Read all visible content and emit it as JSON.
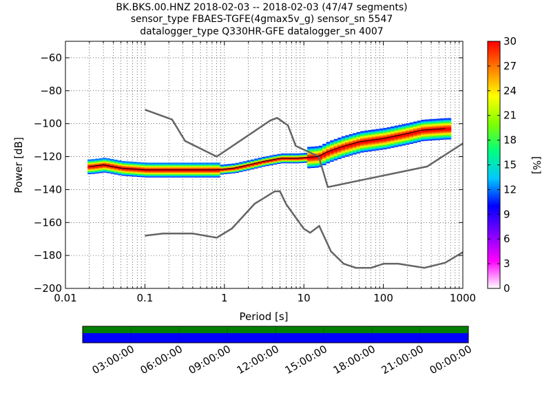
{
  "header": {
    "line1": "BK.BKS.00.HNZ   2018-02-03 -- 2018-02-03  (47/47 segments)",
    "line2": "sensor_type FBAES-TGFE(4gmax5v_g) sensor_sn 5547",
    "line3": "datalogger_type Q330HR-GFE datalogger_sn 4007"
  },
  "chart_data": {
    "type": "heatmap",
    "title": "BK.BKS.00.HNZ   2018-02-03 -- 2018-02-03  (47/47 segments)",
    "xlabel": "Period [s]",
    "ylabel": "Power [dB]",
    "x_scale": "log",
    "xlim": [
      0.01,
      1000
    ],
    "ylim": [
      -200,
      -50
    ],
    "x_ticks": [
      0.01,
      0.1,
      1,
      10,
      100,
      1000
    ],
    "x_tick_labels": [
      "0.01",
      "0.1",
      "1",
      "10",
      "100",
      "1000"
    ],
    "y_ticks": [
      -200,
      -180,
      -160,
      -140,
      -120,
      -100,
      -80,
      -60
    ],
    "y_tick_labels": [
      "−200",
      "−180",
      "−160",
      "−140",
      "−120",
      "−100",
      "−80",
      "−60"
    ],
    "grid": true,
    "colorbar": {
      "label": "[%]",
      "range": [
        0,
        30
      ],
      "ticks": [
        0,
        3,
        6,
        9,
        12,
        15,
        18,
        21,
        24,
        27,
        30
      ],
      "tick_labels": [
        "0",
        "3",
        "6",
        "9",
        "12",
        "15",
        "18",
        "21",
        "24",
        "27",
        "30"
      ],
      "colormap_stops": [
        "#ffffff",
        "#ff00ff",
        "#7f00ff",
        "#0000ff",
        "#00c8ff",
        "#00ff80",
        "#80ff00",
        "#ffff00",
        "#ff8000",
        "#ff0000"
      ]
    },
    "mode_curve": [
      {
        "x": 0.02,
        "y": -126
      },
      {
        "x": 0.03,
        "y": -125
      },
      {
        "x": 0.05,
        "y": -127
      },
      {
        "x": 0.1,
        "y": -128
      },
      {
        "x": 0.3,
        "y": -128
      },
      {
        "x": 0.8,
        "y": -128
      },
      {
        "x": 1.3,
        "y": -127
      },
      {
        "x": 2,
        "y": -125
      },
      {
        "x": 3,
        "y": -123
      },
      {
        "x": 5,
        "y": -121
      },
      {
        "x": 8,
        "y": -121
      },
      {
        "x": 15,
        "y": -120
      },
      {
        "x": 20,
        "y": -117
      },
      {
        "x": 30,
        "y": -114
      },
      {
        "x": 50,
        "y": -111
      },
      {
        "x": 100,
        "y": -109
      },
      {
        "x": 200,
        "y": -106
      },
      {
        "x": 300,
        "y": -104
      },
      {
        "x": 600,
        "y": -103
      }
    ],
    "nhnm": [
      {
        "x": 0.1,
        "y": -91.5
      },
      {
        "x": 0.22,
        "y": -97.5
      },
      {
        "x": 0.32,
        "y": -110.5
      },
      {
        "x": 0.8,
        "y": -120
      },
      {
        "x": 3.8,
        "y": -98
      },
      {
        "x": 4.6,
        "y": -96.5
      },
      {
        "x": 6.3,
        "y": -101
      },
      {
        "x": 7.9,
        "y": -113.5
      },
      {
        "x": 15.4,
        "y": -120
      },
      {
        "x": 20,
        "y": -138.5
      },
      {
        "x": 354.8,
        "y": -126
      },
      {
        "x": 1000,
        "y": -112
      }
    ],
    "nlnm": [
      {
        "x": 0.1,
        "y": -168
      },
      {
        "x": 0.17,
        "y": -166.7
      },
      {
        "x": 0.4,
        "y": -166.7
      },
      {
        "x": 0.8,
        "y": -169.2
      },
      {
        "x": 1.24,
        "y": -163.7
      },
      {
        "x": 2.4,
        "y": -148.6
      },
      {
        "x": 4.3,
        "y": -141.1
      },
      {
        "x": 5,
        "y": -141.1
      },
      {
        "x": 6,
        "y": -149
      },
      {
        "x": 10,
        "y": -163.8
      },
      {
        "x": 12,
        "y": -166.2
      },
      {
        "x": 15.6,
        "y": -162.1
      },
      {
        "x": 21.9,
        "y": -177.5
      },
      {
        "x": 31.6,
        "y": -185
      },
      {
        "x": 45,
        "y": -187.5
      },
      {
        "x": 70,
        "y": -187.5
      },
      {
        "x": 101,
        "y": -185
      },
      {
        "x": 154,
        "y": -185
      },
      {
        "x": 328,
        "y": -187.5
      },
      {
        "x": 600,
        "y": -184.4
      },
      {
        "x": 1000,
        "y": -178
      }
    ]
  },
  "timeline": {
    "labels": [
      "03:00:00",
      "06:00:00",
      "09:00:00",
      "12:00:00",
      "15:00:00",
      "18:00:00",
      "21:00:00",
      "00:00:00"
    ],
    "data_color": "#008000",
    "gap_color": "#0000ff"
  }
}
